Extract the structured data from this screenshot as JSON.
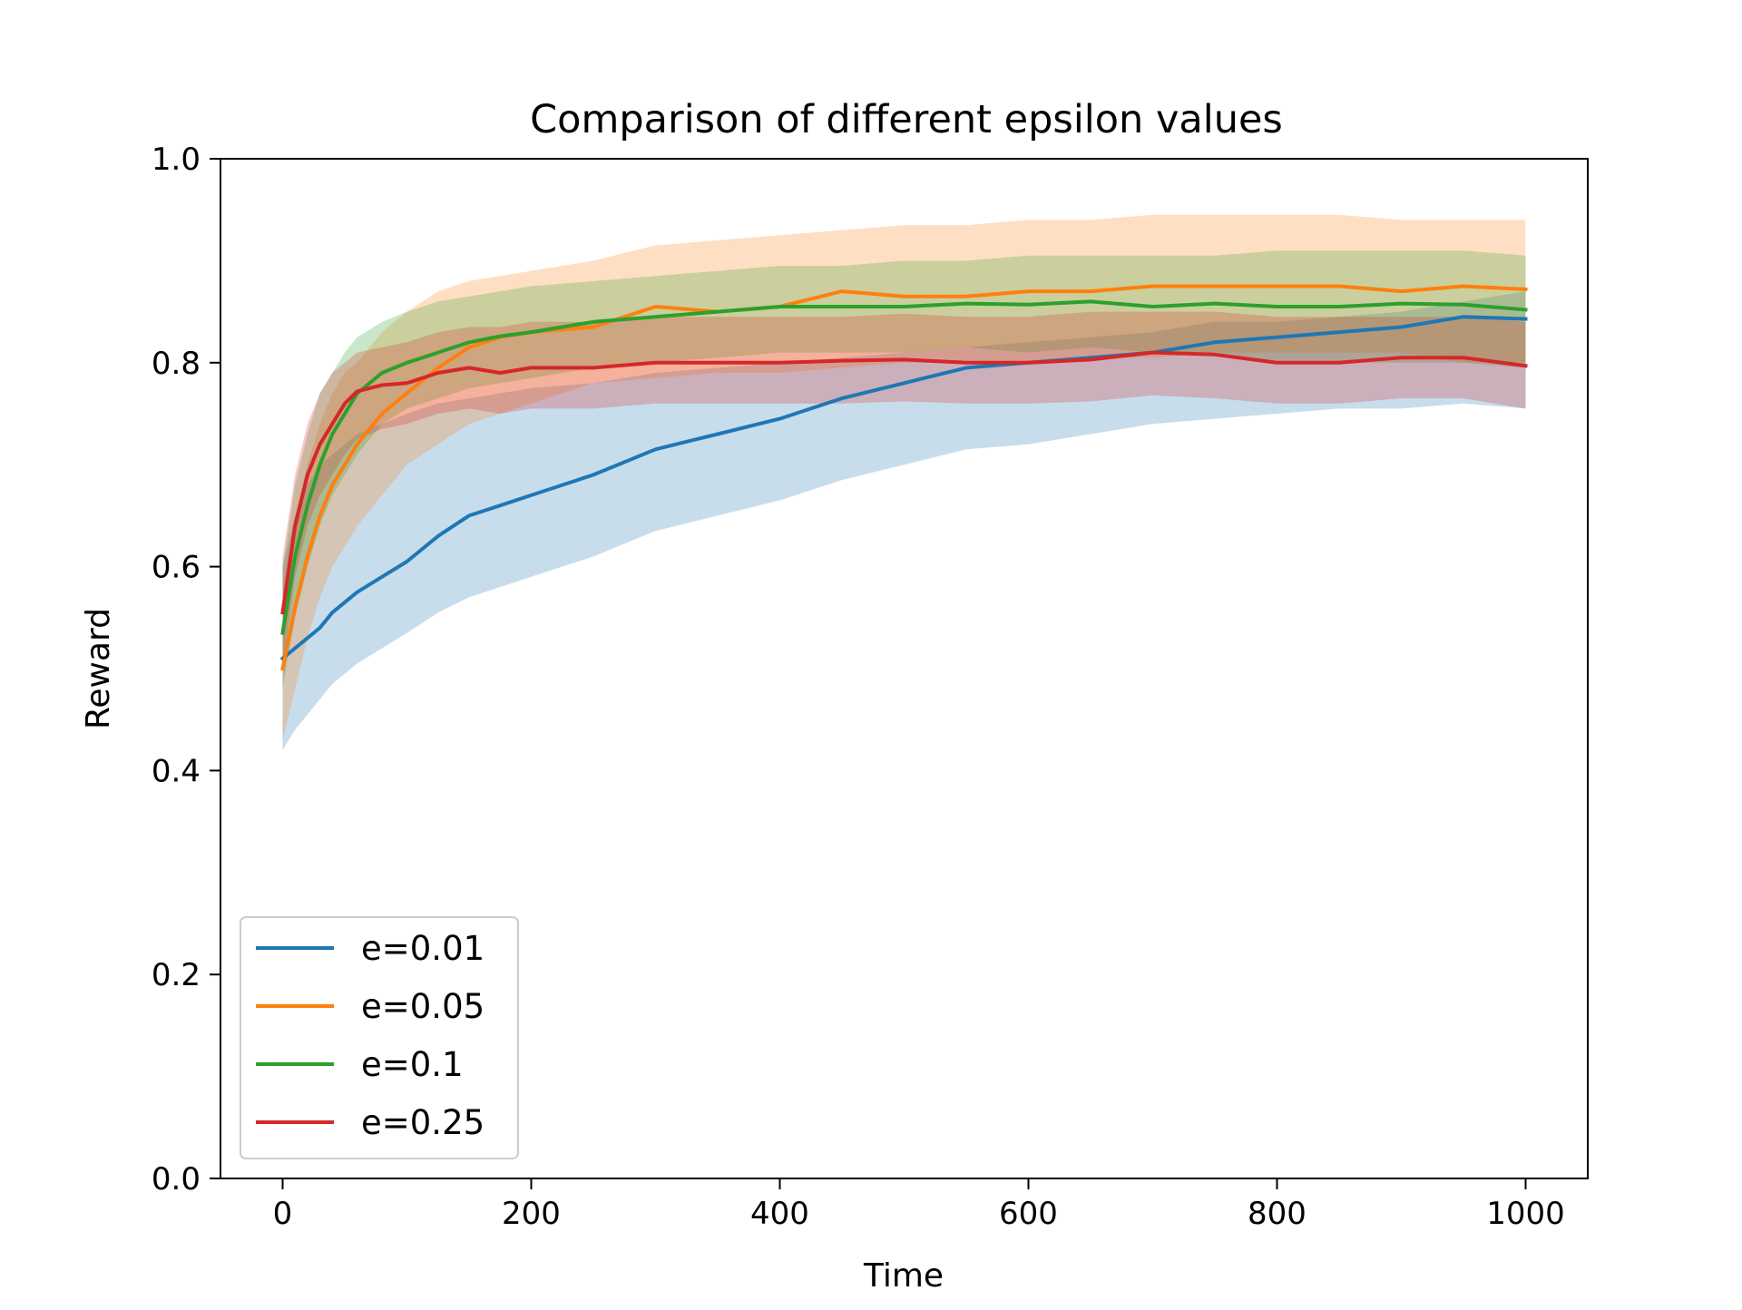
{
  "chart_data": {
    "type": "line",
    "title": "Comparison of different epsilon values",
    "xlabel": "Time",
    "ylabel": "Reward",
    "xlim": [
      -50,
      1050
    ],
    "ylim": [
      0.0,
      1.0
    ],
    "xticks": [
      0,
      200,
      400,
      600,
      800,
      1000
    ],
    "xtick_labels": [
      "0",
      "200",
      "400",
      "600",
      "800",
      "1000"
    ],
    "yticks": [
      0.0,
      0.2,
      0.4,
      0.6,
      0.8,
      1.0
    ],
    "ytick_labels": [
      "0.0",
      "0.2",
      "0.4",
      "0.6",
      "0.8",
      "1.0"
    ],
    "grid": false,
    "legend_position": "lower-left",
    "band_opacity": 0.25,
    "x": [
      0,
      10,
      20,
      30,
      40,
      50,
      60,
      80,
      100,
      125,
      150,
      175,
      200,
      250,
      300,
      350,
      400,
      450,
      500,
      550,
      600,
      650,
      700,
      750,
      800,
      850,
      900,
      950,
      1000
    ],
    "series": [
      {
        "name": "e=0.01",
        "color": "#1f77b4",
        "values": [
          0.51,
          0.52,
          0.53,
          0.54,
          0.555,
          0.565,
          0.575,
          0.59,
          0.605,
          0.63,
          0.65,
          0.66,
          0.67,
          0.69,
          0.715,
          0.73,
          0.745,
          0.765,
          0.78,
          0.795,
          0.8,
          0.805,
          0.81,
          0.82,
          0.825,
          0.83,
          0.835,
          0.845,
          0.843
        ],
        "upper": [
          0.6,
          0.65,
          0.68,
          0.7,
          0.71,
          0.72,
          0.73,
          0.74,
          0.75,
          0.76,
          0.765,
          0.77,
          0.775,
          0.78,
          0.79,
          0.795,
          0.8,
          0.805,
          0.81,
          0.815,
          0.82,
          0.825,
          0.83,
          0.84,
          0.84,
          0.845,
          0.85,
          0.86,
          0.87
        ],
        "lower": [
          0.42,
          0.44,
          0.455,
          0.47,
          0.485,
          0.495,
          0.505,
          0.52,
          0.535,
          0.555,
          0.57,
          0.58,
          0.59,
          0.61,
          0.635,
          0.65,
          0.665,
          0.685,
          0.7,
          0.715,
          0.72,
          0.73,
          0.74,
          0.745,
          0.75,
          0.755,
          0.755,
          0.76,
          0.755
        ]
      },
      {
        "name": "e=0.05",
        "color": "#ff7f0e",
        "values": [
          0.5,
          0.56,
          0.61,
          0.65,
          0.68,
          0.7,
          0.72,
          0.75,
          0.77,
          0.795,
          0.815,
          0.825,
          0.83,
          0.835,
          0.855,
          0.85,
          0.855,
          0.87,
          0.865,
          0.865,
          0.87,
          0.87,
          0.875,
          0.875,
          0.875,
          0.875,
          0.87,
          0.875,
          0.872
        ],
        "upper": [
          0.58,
          0.65,
          0.7,
          0.74,
          0.77,
          0.79,
          0.8,
          0.83,
          0.85,
          0.87,
          0.88,
          0.885,
          0.89,
          0.9,
          0.915,
          0.92,
          0.925,
          0.93,
          0.935,
          0.935,
          0.94,
          0.94,
          0.945,
          0.945,
          0.945,
          0.945,
          0.94,
          0.94,
          0.94
        ],
        "lower": [
          0.43,
          0.48,
          0.53,
          0.57,
          0.6,
          0.62,
          0.64,
          0.67,
          0.7,
          0.72,
          0.74,
          0.75,
          0.76,
          0.78,
          0.785,
          0.79,
          0.79,
          0.795,
          0.8,
          0.8,
          0.8,
          0.805,
          0.805,
          0.81,
          0.81,
          0.81,
          0.81,
          0.8,
          0.8
        ]
      },
      {
        "name": "e=0.1",
        "color": "#2ca02c",
        "values": [
          0.535,
          0.61,
          0.66,
          0.7,
          0.73,
          0.75,
          0.77,
          0.79,
          0.8,
          0.81,
          0.82,
          0.826,
          0.83,
          0.84,
          0.845,
          0.85,
          0.855,
          0.855,
          0.855,
          0.858,
          0.857,
          0.86,
          0.855,
          0.858,
          0.855,
          0.855,
          0.858,
          0.857,
          0.852
        ],
        "upper": [
          0.6,
          0.68,
          0.73,
          0.77,
          0.79,
          0.81,
          0.825,
          0.84,
          0.85,
          0.86,
          0.865,
          0.87,
          0.875,
          0.88,
          0.885,
          0.89,
          0.895,
          0.895,
          0.9,
          0.9,
          0.905,
          0.905,
          0.905,
          0.905,
          0.91,
          0.91,
          0.91,
          0.91,
          0.905
        ],
        "lower": [
          0.48,
          0.55,
          0.6,
          0.64,
          0.67,
          0.69,
          0.71,
          0.74,
          0.755,
          0.765,
          0.775,
          0.78,
          0.785,
          0.795,
          0.8,
          0.805,
          0.81,
          0.81,
          0.81,
          0.815,
          0.81,
          0.815,
          0.81,
          0.81,
          0.8,
          0.8,
          0.8,
          0.8,
          0.795
        ]
      },
      {
        "name": "e=0.25",
        "color": "#d62728",
        "values": [
          0.555,
          0.64,
          0.69,
          0.72,
          0.74,
          0.76,
          0.772,
          0.778,
          0.78,
          0.79,
          0.795,
          0.79,
          0.795,
          0.795,
          0.8,
          0.8,
          0.8,
          0.802,
          0.803,
          0.8,
          0.8,
          0.803,
          0.81,
          0.808,
          0.8,
          0.8,
          0.805,
          0.805,
          0.797
        ],
        "upper": [
          0.61,
          0.69,
          0.74,
          0.77,
          0.79,
          0.8,
          0.81,
          0.815,
          0.82,
          0.83,
          0.835,
          0.835,
          0.84,
          0.84,
          0.845,
          0.845,
          0.845,
          0.845,
          0.848,
          0.845,
          0.845,
          0.85,
          0.85,
          0.85,
          0.845,
          0.845,
          0.845,
          0.845,
          0.84
        ],
        "lower": [
          0.5,
          0.59,
          0.64,
          0.67,
          0.69,
          0.71,
          0.725,
          0.735,
          0.74,
          0.75,
          0.755,
          0.75,
          0.755,
          0.755,
          0.76,
          0.76,
          0.76,
          0.76,
          0.762,
          0.76,
          0.76,
          0.762,
          0.768,
          0.765,
          0.76,
          0.76,
          0.765,
          0.765,
          0.755
        ]
      }
    ]
  }
}
